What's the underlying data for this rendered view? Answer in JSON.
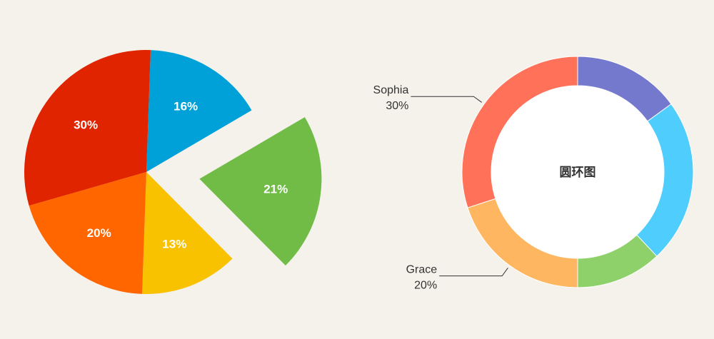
{
  "chart_data": [
    {
      "type": "pie",
      "slices": [
        {
          "label": "16%",
          "value": 16,
          "color": "#00a1d8"
        },
        {
          "label": "21%",
          "value": 21,
          "color": "#70bc47",
          "exploded": true
        },
        {
          "label": "13%",
          "value": 13,
          "color": "#f8c200"
        },
        {
          "label": "20%",
          "value": 20,
          "color": "#ff6600"
        },
        {
          "label": "30%",
          "value": 30,
          "color": "#e12400"
        }
      ]
    },
    {
      "type": "pie",
      "variant": "donut",
      "center_text": "圆环图",
      "slices": [
        {
          "name": "",
          "value": 15,
          "color": "#7479cd"
        },
        {
          "name": "",
          "value": 23,
          "color": "#4fcdfd"
        },
        {
          "name": "",
          "value": 12,
          "color": "#8ed16a"
        },
        {
          "name": "Grace",
          "value": 20,
          "label": "20%",
          "color": "#ffb661"
        },
        {
          "name": "Sophia",
          "value": 30,
          "label": "30%",
          "color": "#ff7159"
        }
      ]
    }
  ]
}
